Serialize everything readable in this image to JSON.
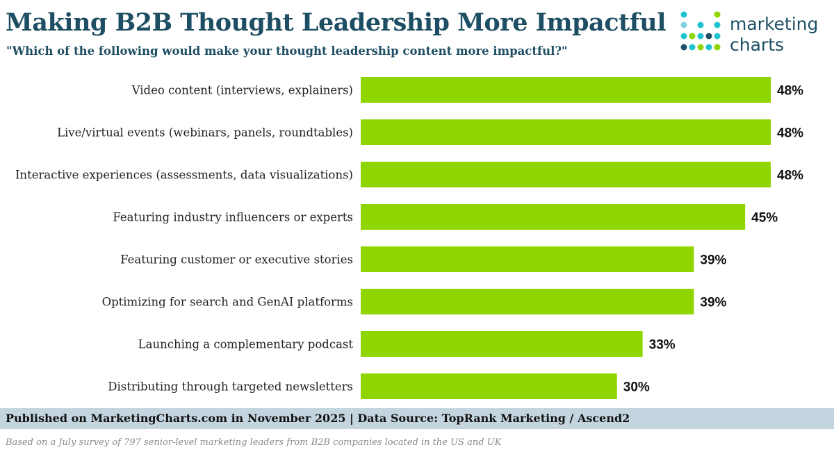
{
  "header": {
    "title": "Making B2B Thought Leadership More Impactful",
    "subtitle": "\"Which of the following would make your thought leadership content more impactful?\""
  },
  "logo": {
    "line1": "marketing",
    "line2": "charts"
  },
  "colors": {
    "bar": "#8fd600",
    "title": "#1d4e63",
    "footer_band": "#c5d5e0"
  },
  "chart_data": {
    "type": "bar",
    "orientation": "horizontal",
    "title": "Making B2B Thought Leadership More Impactful",
    "categories": [
      "Video content (interviews, explainers)",
      "Live/virtual events (webinars, panels, roundtables)",
      "Interactive experiences (assessments, data visualizations)",
      "Featuring industry influencers or experts",
      "Featuring customer or executive stories",
      "Optimizing for search and GenAI platforms",
      "Launching a complementary podcast",
      "Distributing through targeted newsletters"
    ],
    "values": [
      48,
      48,
      48,
      45,
      39,
      39,
      33,
      30
    ],
    "value_labels": [
      "48%",
      "48%",
      "48%",
      "45%",
      "39%",
      "39%",
      "33%",
      "30%"
    ],
    "unit": "%",
    "xlim": [
      0,
      48
    ],
    "grid": false,
    "legend": "none"
  },
  "footer": {
    "source": "Published on MarketingCharts.com in November 2025 | Data Source: TopRank Marketing / Ascend2",
    "note": "Based on a July survey of 797 senior-level marketing leaders from B2B companies located in the US and UK"
  }
}
